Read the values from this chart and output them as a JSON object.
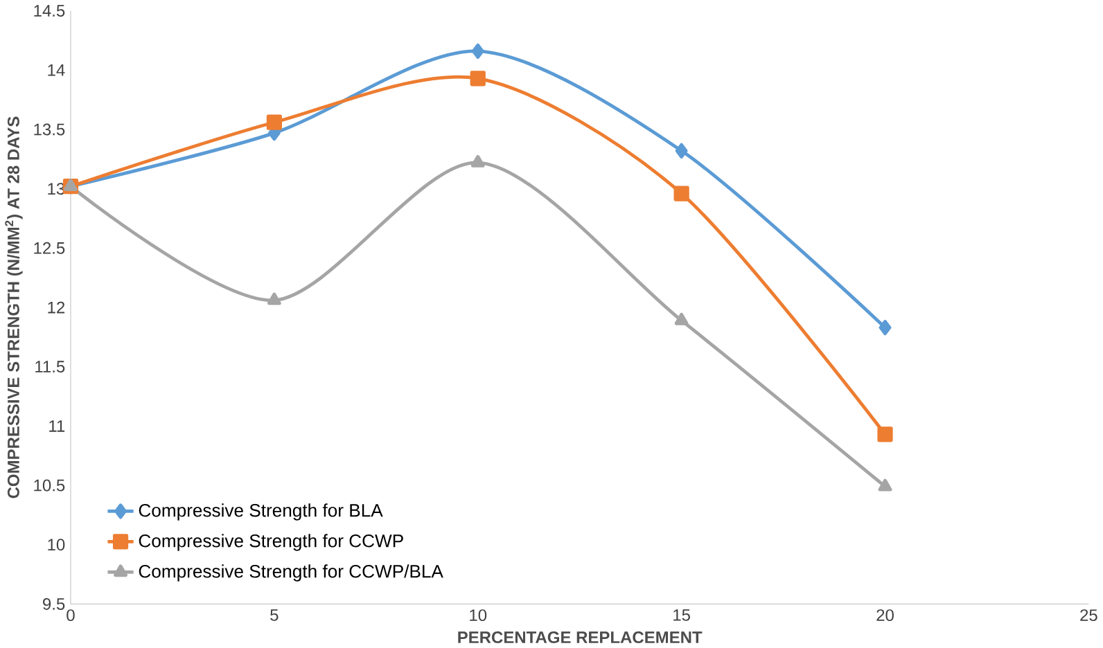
{
  "chart_data": {
    "type": "line",
    "xlabel": "PERCENTAGE REPLACEMENT",
    "ylabel": "COMPRESSIVE STRENGTH (N/MM$^{2}$) AT 28 DAYS",
    "x": [
      0,
      5,
      10,
      15,
      20
    ],
    "series": [
      {
        "name": "Compressive Strength for BLA",
        "color": "#5b9bd5",
        "marker": "diamond",
        "values": [
          13.02,
          13.47,
          14.16,
          13.32,
          11.83
        ]
      },
      {
        "name": "Compressive Strength for CCWP",
        "color": "#ed7d31",
        "marker": "square",
        "values": [
          13.02,
          13.56,
          13.93,
          12.96,
          10.93
        ]
      },
      {
        "name": "Compressive Strength for CCWP/BLA",
        "color": "#a5a5a5",
        "marker": "triangle",
        "values": [
          13.02,
          12.06,
          13.22,
          11.89,
          10.49
        ]
      }
    ],
    "xlim": [
      0,
      25
    ],
    "xticks": [
      0,
      5,
      10,
      15,
      20,
      25
    ],
    "ylim": [
      9.5,
      14.5
    ],
    "yticks": [
      9.5,
      10,
      10.5,
      11,
      11.5,
      12,
      12.5,
      13,
      13.5,
      14,
      14.5
    ],
    "grid": false,
    "legend": "bottom left"
  }
}
